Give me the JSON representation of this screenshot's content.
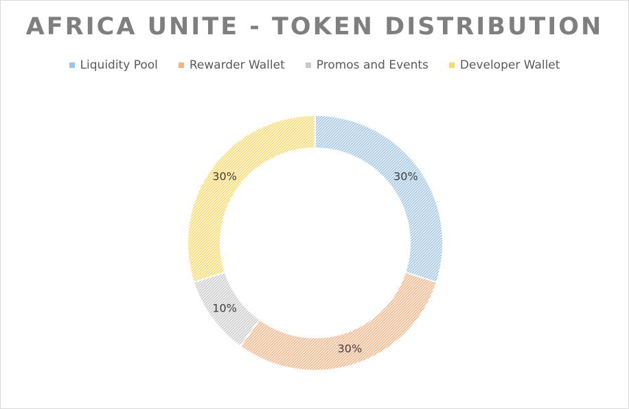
{
  "chart_data": {
    "type": "pie",
    "subtype": "donut",
    "title": "AFRICA UNITE - TOKEN DISTRIBUTION",
    "categories": [
      "Liquidity Pool",
      "Rewarder Wallet",
      "Promos and Events",
      "Developer Wallet"
    ],
    "values": [
      30,
      30,
      10,
      30
    ],
    "data_labels": [
      "30%",
      "30%",
      "10%",
      "30%"
    ],
    "colors": [
      "#9DC3E6",
      "#F4B183",
      "#C9C9C9",
      "#FFD966"
    ],
    "legend_position": "top",
    "fill_pattern": "hatched"
  }
}
